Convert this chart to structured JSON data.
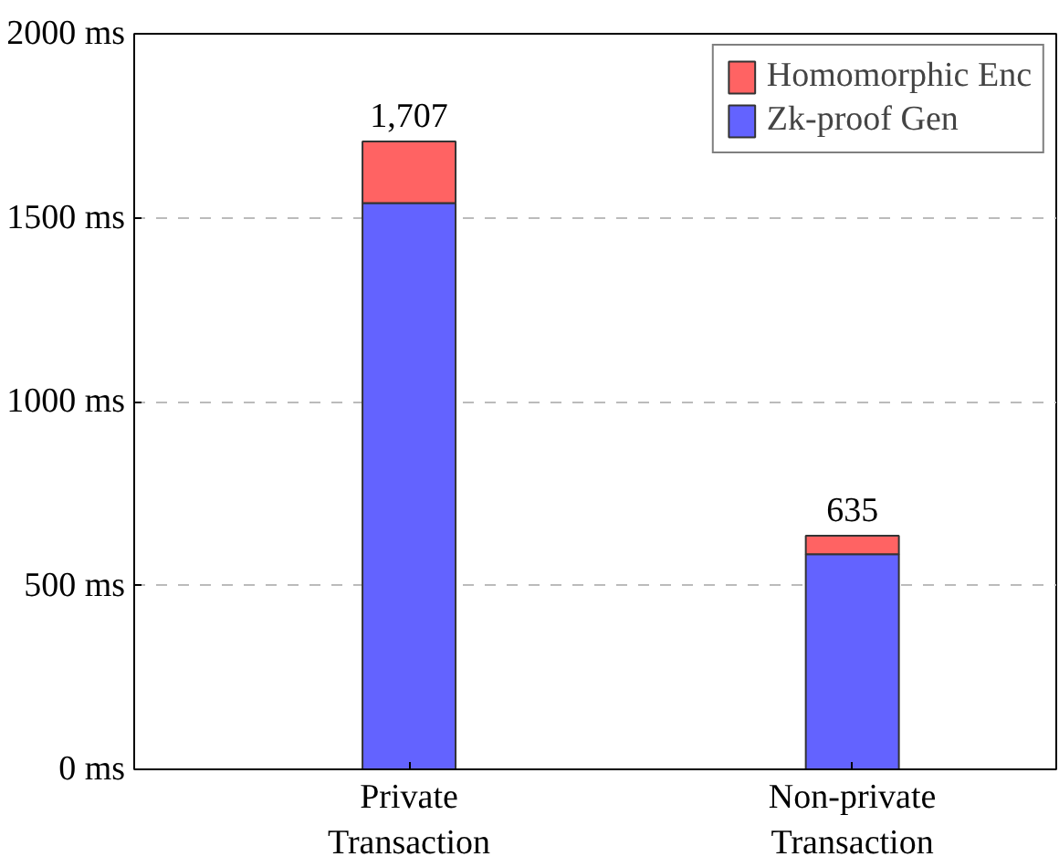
{
  "chart_data": {
    "type": "bar",
    "stacked": true,
    "categories": [
      "Private\nTransaction",
      "Non-private\nTransaction"
    ],
    "series": [
      {
        "name": "Zk-proof Gen",
        "color": "#6363ff",
        "values": [
          1540,
          585
        ]
      },
      {
        "name": "Homomorphic Enc",
        "color": "#ff6363",
        "values": [
          167,
          50
        ]
      }
    ],
    "totals": [
      "1,707",
      "635"
    ],
    "ylim": [
      0,
      2000
    ],
    "yticks": [
      {
        "value": 0,
        "label": "0 ms"
      },
      {
        "value": 500,
        "label": "500 ms"
      },
      {
        "value": 1000,
        "label": "1000 ms"
      },
      {
        "value": 1500,
        "label": "1500 ms"
      },
      {
        "value": 2000,
        "label": "2000 ms"
      }
    ],
    "grid": "y",
    "legend": "top right"
  }
}
